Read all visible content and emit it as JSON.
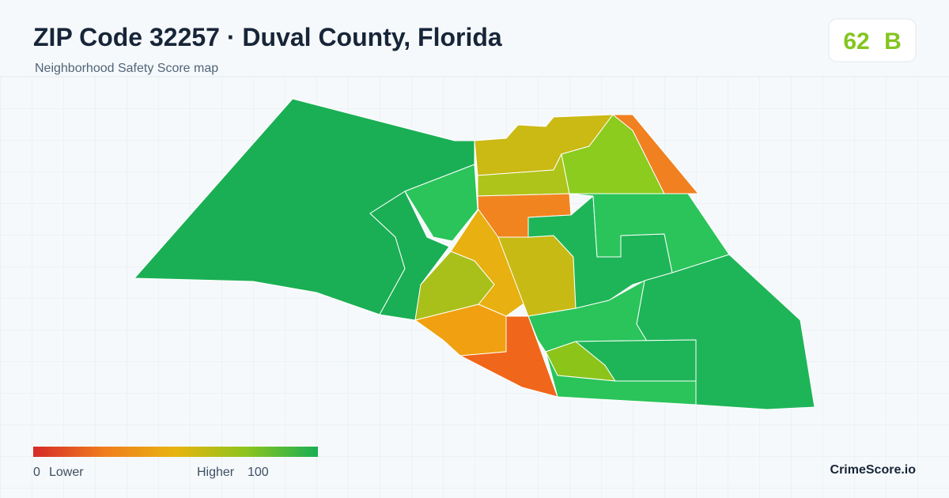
{
  "header": {
    "title": "ZIP Code 32257 · Duval County, Florida",
    "subtitle": "Neighborhood Safety Score map"
  },
  "score": {
    "value": 62,
    "grade": "B"
  },
  "legend": {
    "min": 0,
    "min_label": "Lower",
    "max_label": "Higher",
    "max": 100
  },
  "brand": "CrimeScore.io"
}
